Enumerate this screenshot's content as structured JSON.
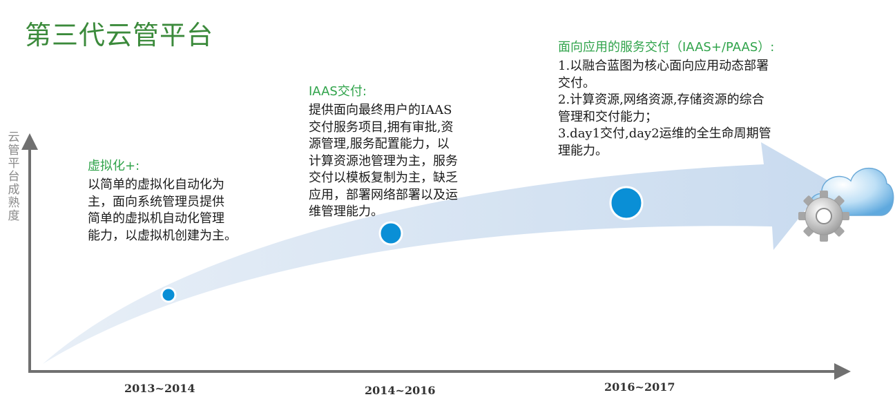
{
  "title": "第三代云管平台",
  "y_axis_label": "云管平台成熟度",
  "periods": [
    "2013~2014",
    "2014~2016",
    "2016~2017"
  ],
  "stages": [
    {
      "heading": "虚拟化+:",
      "body": [
        "以简单的虚拟化自动化为",
        "主，面向系统管理员提供",
        "简单的虚拟机自动化管理",
        "能力，以虚拟机创建为主。"
      ]
    },
    {
      "heading": "IAAS交付:",
      "body": [
        "提供面向最终用户的IAAS",
        "交付服务项目,拥有审批,资",
        "源管理,服务配置能力，以",
        "计算资源池管理为主，服务",
        "交付以模板复制为主，缺乏",
        "应用，部署网络部署以及运",
        "维管理能力。"
      ]
    },
    {
      "heading": "面向应用的服务交付（IAAS+/PAAS）:",
      "body": [
        "1.以融合蓝图为核心面向应用动态部署",
        "交付。",
        "2.计算资源,网络资源,存储资源的综合",
        "管理和交付能力；",
        "3.day1交付,day2运维的全生命周期管",
        "理能力。"
      ]
    }
  ],
  "colors": {
    "title": "#3b8a3b",
    "heading": "#2fa34a",
    "arrow_band": "#d6e4f2",
    "milestone": "#0a8fd6",
    "axis": "#707070"
  },
  "icons": [
    "cloud-icon",
    "gear-icon"
  ]
}
